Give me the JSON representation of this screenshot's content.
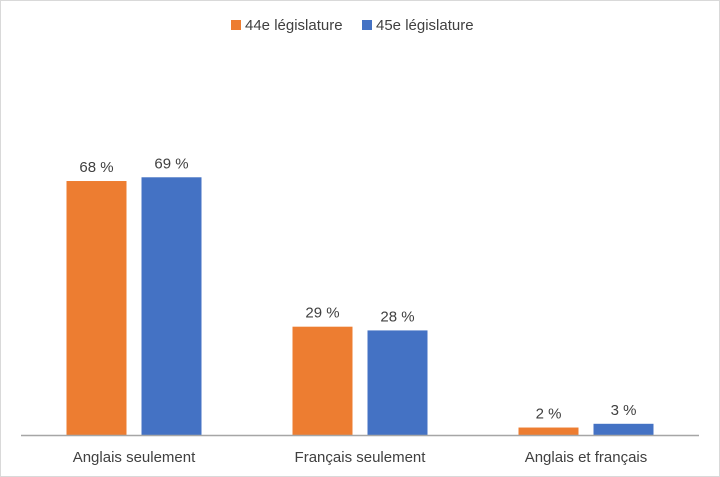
{
  "chart_data": {
    "type": "bar",
    "categories": [
      "Anglais seulement",
      "Français seulement",
      "Anglais et français"
    ],
    "series": [
      {
        "name": "44e législature",
        "values": [
          68,
          29,
          2
        ],
        "color": "#ED7D31"
      },
      {
        "name": "45e législature",
        "values": [
          69,
          28,
          3
        ],
        "color": "#4472C4"
      }
    ],
    "value_suffix": " %",
    "ylim": [
      0,
      100
    ],
    "grid": false,
    "legend": "top",
    "axis_color": "#A6A6A6"
  }
}
